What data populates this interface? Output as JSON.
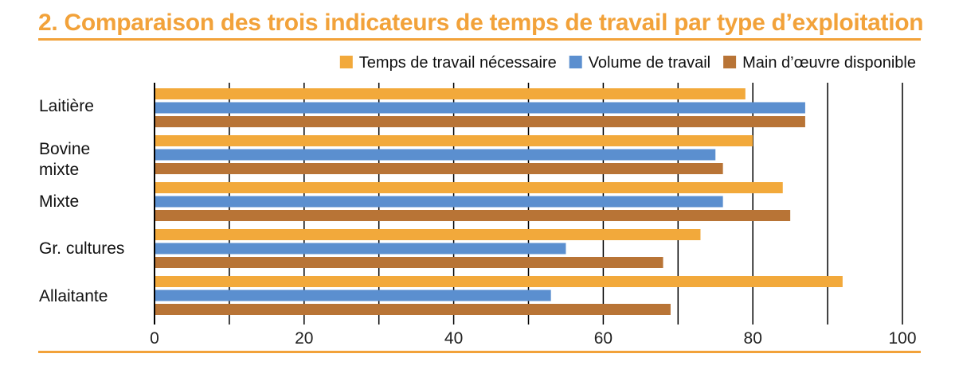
{
  "title": "2. Comparaison des trois indicateurs de temps de travail par type d’exploitation",
  "chart_data": {
    "type": "bar",
    "orientation": "horizontal",
    "categories": [
      "Laitière",
      "Bovine mixte",
      "Mixte",
      "Gr. cultures",
      "Allaitante"
    ],
    "category_lines": [
      [
        "Laitière"
      ],
      [
        "Bovine",
        "mixte"
      ],
      [
        "Mixte"
      ],
      [
        "Gr. cultures"
      ],
      [
        "Allaitante"
      ]
    ],
    "series": [
      {
        "name": "Temps de travail nécessaire",
        "color": "#F2A93B",
        "values": [
          79,
          80,
          84,
          73,
          92
        ]
      },
      {
        "name": "Volume de travail",
        "color": "#5B8FCF",
        "values": [
          87,
          75,
          76,
          55,
          53
        ]
      },
      {
        "name": "Main d’œuvre disponible",
        "color": "#B87436",
        "values": [
          87,
          76,
          85,
          68,
          69
        ]
      }
    ],
    "xlim": [
      0,
      100
    ],
    "xticks": [
      0,
      20,
      40,
      60,
      80,
      100
    ],
    "grid": "vertical lines every 10",
    "legend_position": "top-right"
  }
}
